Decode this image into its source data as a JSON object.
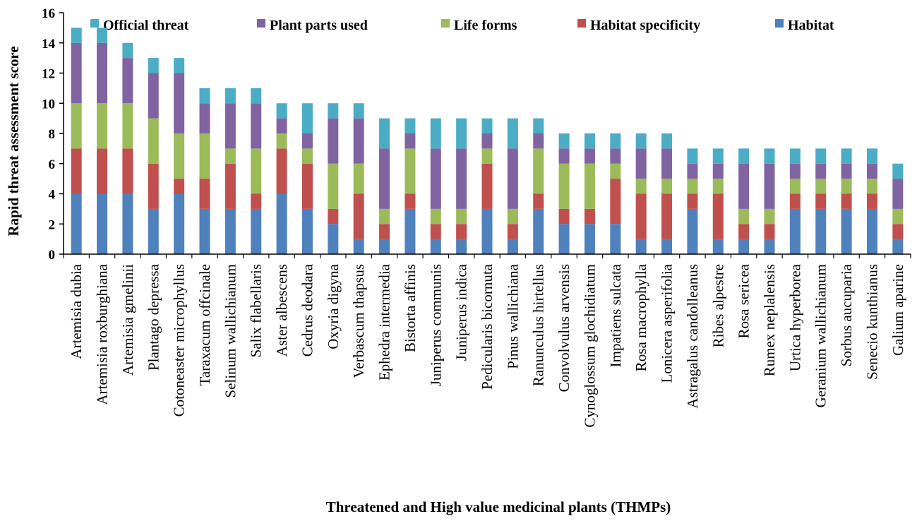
{
  "chart_data": {
    "type": "bar",
    "stacked": true,
    "title": "",
    "xlabel": "Threatened and High value medicinal plants (THMPs)",
    "ylabel": "Rapid threat assessment score",
    "ylim": [
      0,
      16
    ],
    "yticks": [
      0,
      2,
      4,
      6,
      8,
      10,
      12,
      14,
      16
    ],
    "grid": false,
    "legend_position": "top",
    "categories": [
      "Artemisia dubia",
      "Artemisia roxburghiana",
      "Artemisia gmelinii",
      "Plantago depressa",
      "Cotoneaster microphyllus",
      "Taraxacum offcinale",
      "Selinum wallichianum",
      "Salix flabellaris",
      "Aster albescens",
      "Cedrus deodara",
      "Oxyria digyna",
      "Verbascum thapsus",
      "Ephedra intermedia",
      "Bistorta affinis",
      "Juniperus communis",
      "Juniperus indica",
      "Pedicularis bicornuta",
      "Pinus wallichiana",
      "Ranunculus hirtellus",
      "Convolvulus arvensis",
      "Cynoglossum glochidiatum",
      "Impatiens sulcata",
      "Rosa macrophylla",
      "Lonicera asperifolia",
      "Astragalus candolleanus",
      "Ribes alpestre",
      "Rosa sericea",
      "Rumex neplalensis",
      "Urtica hyperborea",
      "Geranium wallichianum",
      "Sorbus aucuparia",
      "Senecio kunthianus",
      "Galium aparine"
    ],
    "series": [
      {
        "name": "Habitat",
        "color": "#4F81BD",
        "values": [
          4,
          4,
          4,
          3,
          4,
          3,
          3,
          3,
          4,
          3,
          2,
          1,
          1,
          3,
          1,
          1,
          3,
          1,
          3,
          2,
          2,
          2,
          1,
          1,
          3,
          1,
          1,
          1,
          3,
          3,
          3,
          3,
          1
        ]
      },
      {
        "name": "Habitat specificity",
        "color": "#C0504D",
        "values": [
          3,
          3,
          3,
          3,
          1,
          2,
          3,
          1,
          3,
          3,
          1,
          3,
          1,
          1,
          1,
          1,
          3,
          1,
          1,
          1,
          1,
          3,
          3,
          3,
          1,
          3,
          1,
          1,
          1,
          1,
          1,
          1,
          1
        ]
      },
      {
        "name": "Life forms",
        "color": "#9BBB59",
        "values": [
          3,
          3,
          3,
          3,
          3,
          3,
          1,
          3,
          1,
          1,
          3,
          2,
          1,
          3,
          1,
          1,
          1,
          1,
          3,
          3,
          3,
          1,
          1,
          1,
          1,
          1,
          1,
          1,
          1,
          1,
          1,
          1,
          1
        ]
      },
      {
        "name": "Plant parts used",
        "color": "#8064A2",
        "values": [
          4,
          4,
          3,
          3,
          4,
          2,
          3,
          3,
          1,
          1,
          3,
          3,
          4,
          1,
          4,
          4,
          1,
          4,
          1,
          1,
          1,
          1,
          2,
          2,
          1,
          1,
          3,
          3,
          1,
          1,
          1,
          1,
          2
        ]
      },
      {
        "name": "Official threat",
        "color": "#4BACC6",
        "values": [
          1,
          1,
          1,
          1,
          1,
          1,
          1,
          1,
          1,
          2,
          1,
          1,
          2,
          1,
          2,
          2,
          1,
          2,
          1,
          1,
          1,
          1,
          1,
          1,
          1,
          1,
          1,
          1,
          1,
          1,
          1,
          1,
          1
        ]
      }
    ],
    "legend_order": [
      "Official threat",
      "Plant parts used",
      "Life forms",
      "Habitat specificity",
      "Habitat"
    ]
  }
}
